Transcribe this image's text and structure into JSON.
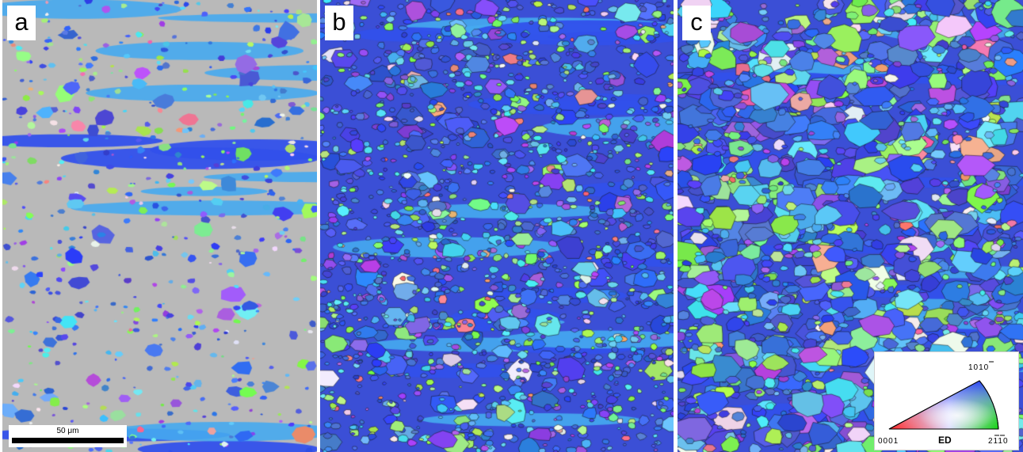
{
  "figure": {
    "panels": [
      {
        "label": "a",
        "gray_fraction": 0.62,
        "grain_size": "fine"
      },
      {
        "label": "b",
        "gray_fraction": 0.0,
        "grain_size": "mixed"
      },
      {
        "label": "c",
        "gray_fraction": 0.0,
        "grain_size": "coarse"
      }
    ],
    "scalebar": {
      "label": "50 μm"
    },
    "legend": {
      "title": "ED",
      "corner_basal": "0001",
      "corner_prism_a": "2110",
      "corner_prism_m": "1010"
    },
    "colors": {
      "background_unindexed": "#b9b9b9",
      "red_basal": "#ff0000",
      "green_prism": "#1ee61e",
      "blue_prism": "#2040ff",
      "grain_boundary": "#1a1a1a"
    }
  }
}
